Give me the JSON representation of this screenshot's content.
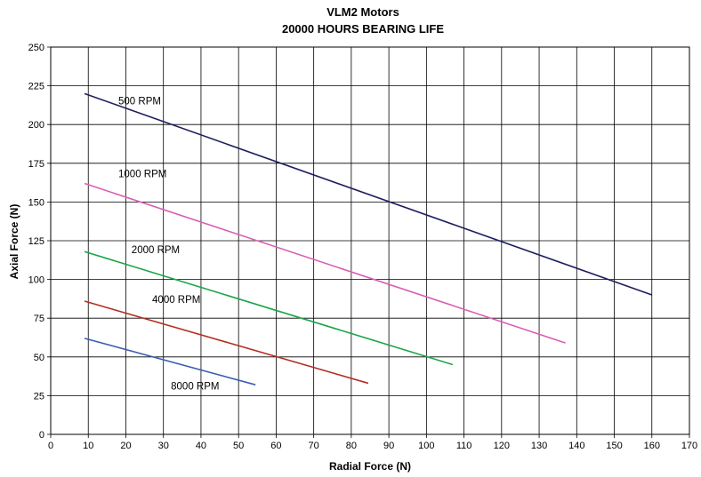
{
  "chart_data": {
    "type": "line",
    "title": "VLM2 Motors",
    "subtitle": "20000 HOURS BEARING LIFE",
    "xlabel": "Radial Force (N)",
    "ylabel": "Axial Force (N)",
    "xlim": [
      0,
      170
    ],
    "ylim": [
      0,
      250
    ],
    "x_ticks": [
      0,
      10,
      20,
      30,
      40,
      50,
      60,
      70,
      80,
      90,
      100,
      110,
      120,
      130,
      140,
      150,
      160,
      170
    ],
    "y_ticks": [
      0,
      25,
      50,
      75,
      100,
      125,
      150,
      175,
      200,
      225,
      250
    ],
    "grid": true,
    "series": [
      {
        "name": "500 RPM",
        "color": "#1e1f5e",
        "x": [
          9,
          160
        ],
        "y": [
          220,
          90
        ]
      },
      {
        "name": "1000 RPM",
        "color": "#d95fb5",
        "x": [
          9,
          137
        ],
        "y": [
          162,
          59
        ]
      },
      {
        "name": "2000 RPM",
        "color": "#19a648",
        "x": [
          9,
          107
        ],
        "y": [
          118,
          45
        ]
      },
      {
        "name": "4000 RPM",
        "color": "#b42d22",
        "x": [
          9,
          84.5
        ],
        "y": [
          86,
          33
        ]
      },
      {
        "name": "8000 RPM",
        "color": "#3a5cb0",
        "x": [
          9,
          54.5
        ],
        "y": [
          62,
          32
        ]
      }
    ],
    "series_labels_at": [
      {
        "series": "500 RPM",
        "x": 18,
        "y": 213
      },
      {
        "series": "1000 RPM",
        "x": 18,
        "y": 166
      },
      {
        "series": "2000 RPM",
        "x": 21.5,
        "y": 117
      },
      {
        "series": "4000 RPM",
        "x": 27,
        "y": 85
      },
      {
        "series": "8000 RPM",
        "x": 32,
        "y": 29
      }
    ]
  }
}
